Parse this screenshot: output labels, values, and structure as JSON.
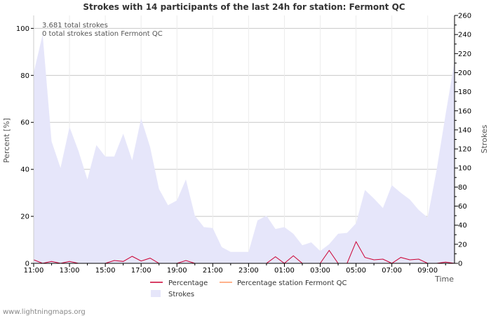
{
  "chart_data": {
    "type": "area",
    "title": "Strokes with 14 participants of the last 24h for station: Fermont QC",
    "xlabel": "Time",
    "ylabel_left": "Percent   [%]",
    "ylabel_right": "Strokes",
    "annotations": [
      "3.681 total strokes",
      "0 total strokes station Fermont QC"
    ],
    "x_tick_labels": [
      "11:00",
      "13:00",
      "15:00",
      "17:00",
      "19:00",
      "21:00",
      "23:00",
      "01:00",
      "03:00",
      "05:00",
      "07:00",
      "09:00"
    ],
    "x_tick_hours": [
      0,
      2,
      4,
      6,
      8,
      10,
      12,
      14,
      16,
      18,
      20,
      22
    ],
    "x_range_hours": [
      0,
      23.5
    ],
    "y_left_range": [
      0,
      105.5
    ],
    "y_left_ticks": [
      0,
      20,
      40,
      60,
      80,
      100
    ],
    "y_right_range": [
      0,
      260
    ],
    "y_right_ticks": [
      0,
      20,
      40,
      60,
      80,
      100,
      120,
      140,
      160,
      180,
      200,
      220,
      240,
      260
    ],
    "x_hours": [
      0,
      0.5,
      1,
      1.5,
      2,
      2.5,
      3,
      3.5,
      4,
      4.5,
      5,
      5.5,
      6,
      6.5,
      7,
      7.5,
      8,
      8.5,
      9,
      9.5,
      10,
      10.5,
      11,
      11.5,
      12,
      12.5,
      13,
      13.5,
      14,
      14.5,
      15,
      15.5,
      16,
      16.5,
      17,
      17.5,
      18,
      18.5,
      19,
      19.5,
      20,
      20.5,
      21,
      21.5,
      22,
      22.5,
      23,
      23.5
    ],
    "series": [
      {
        "name": "Strokes",
        "axis": "right",
        "color": "#e6e6fa",
        "values": [
          200,
          240,
          128,
          100,
          143,
          118,
          88,
          124,
          112,
          112,
          136,
          108,
          152,
          122,
          78,
          61,
          66,
          88,
          50,
          38,
          37,
          17,
          12,
          12,
          12,
          45,
          50,
          36,
          38,
          31,
          19,
          22,
          13,
          20,
          31,
          32,
          42,
          77,
          68,
          58,
          82,
          74,
          67,
          56,
          48,
          98,
          156,
          212
        ]
      },
      {
        "name": "Percentage",
        "axis": "left",
        "color": "#cc0033",
        "values": [
          1.5,
          0,
          0.8,
          0,
          0.8,
          0,
          0,
          0,
          0,
          1.2,
          0.8,
          3,
          1,
          2.2,
          0,
          0,
          0,
          1.2,
          0,
          0,
          0,
          0,
          0,
          0,
          0,
          0,
          0,
          2.8,
          0,
          3.2,
          0,
          0,
          0,
          5.5,
          0,
          0,
          9.2,
          2.5,
          1.5,
          1.8,
          0,
          2.5,
          1.5,
          1.8,
          0,
          0,
          0.5,
          0
        ]
      },
      {
        "name": "Percentage station Fermont QC",
        "axis": "left",
        "color": "#ff9966",
        "values": []
      }
    ],
    "legend": [
      {
        "label": "Percentage",
        "color": "#cc0033",
        "kind": "line"
      },
      {
        "label": "Percentage station Fermont QC",
        "color": "#ff9966",
        "kind": "line"
      },
      {
        "label": "Strokes",
        "color": "#e6e6fa",
        "kind": "area"
      }
    ],
    "grid": true,
    "legend_position": "bottom"
  },
  "footer": "www.lightningmaps.org"
}
